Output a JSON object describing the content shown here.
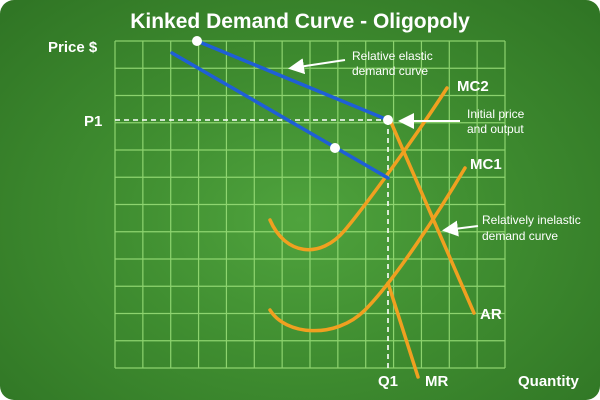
{
  "title": "Kinked Demand Curve - Oligopoly",
  "y_axis_label": "Price $",
  "x_axis_label": "Quantity",
  "price_marker": "P1",
  "quantity_marker": "Q1",
  "curve_labels": {
    "mc2": "MC2",
    "mc1": "MC1",
    "ar": "AR",
    "mr": "MR"
  },
  "annotations": {
    "elastic_line1": "Relative elastic",
    "elastic_line2": "demand curve",
    "kink_line1": "Initial price",
    "kink_line2": "and output",
    "inelastic_line1": "Relatively inelastic",
    "inelastic_line2": "demand curve"
  },
  "colors": {
    "background": "#3f8d30",
    "grid": "#9be07a",
    "demand": "#1f5fd6",
    "cost_curves": "#f0a020",
    "text": "#ffffff"
  }
}
